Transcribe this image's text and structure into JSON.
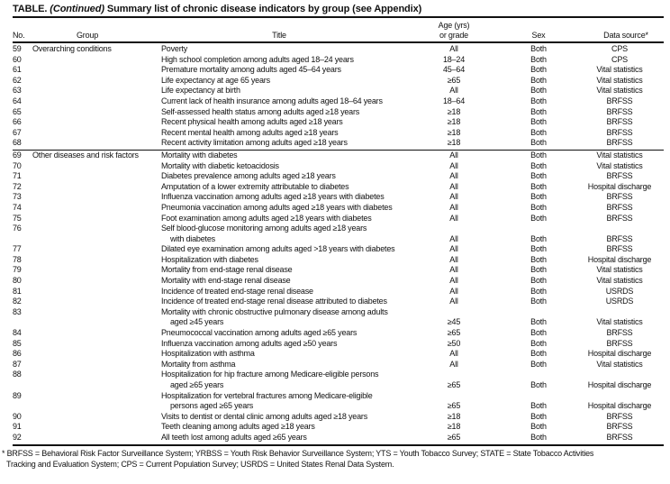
{
  "table": {
    "label": "TABLE.",
    "continued": "(Continued)",
    "caption": "Summary list of chronic disease indicators by group (see Appendix)",
    "headers": {
      "no": "No.",
      "group": "Group",
      "title": "Title",
      "age_line1": "Age (yrs)",
      "age_line2": "or grade",
      "sex": "Sex",
      "source": "Data source*"
    },
    "sections": [
      {
        "group": "Overarching conditions",
        "rows": [
          {
            "no": "59",
            "title": [
              "Poverty"
            ],
            "age": "All",
            "sex": "Both",
            "source": "CPS"
          },
          {
            "no": "60",
            "title": [
              "High school completion among adults aged 18–24 years"
            ],
            "age": "18–24",
            "sex": "Both",
            "source": "CPS"
          },
          {
            "no": "61",
            "title": [
              "Premature mortality among adults aged 45–64 years"
            ],
            "age": "45–64",
            "sex": "Both",
            "source": "Vital statistics"
          },
          {
            "no": "62",
            "title": [
              "Life expectancy at age 65 years"
            ],
            "age": "≥65",
            "sex": "Both",
            "source": "Vital statistics"
          },
          {
            "no": "63",
            "title": [
              "Life expectancy at birth"
            ],
            "age": "All",
            "sex": "Both",
            "source": "Vital statistics"
          },
          {
            "no": "64",
            "title": [
              "Current lack of health insurance among adults aged 18–64 years"
            ],
            "age": "18–64",
            "sex": "Both",
            "source": "BRFSS"
          },
          {
            "no": "65",
            "title": [
              "Self-assessed health status among adults aged ≥18 years"
            ],
            "age": "≥18",
            "sex": "Both",
            "source": "BRFSS"
          },
          {
            "no": "66",
            "title": [
              "Recent physical health among adults aged ≥18 years"
            ],
            "age": "≥18",
            "sex": "Both",
            "source": "BRFSS"
          },
          {
            "no": "67",
            "title": [
              "Recent mental health among adults aged ≥18 years"
            ],
            "age": "≥18",
            "sex": "Both",
            "source": "BRFSS"
          },
          {
            "no": "68",
            "title": [
              "Recent activity limitation among adults aged ≥18 years"
            ],
            "age": "≥18",
            "sex": "Both",
            "source": "BRFSS"
          }
        ]
      },
      {
        "group": "Other diseases and risk factors",
        "rows": [
          {
            "no": "69",
            "title": [
              "Mortality with diabetes"
            ],
            "age": "All",
            "sex": "Both",
            "source": "Vital statistics"
          },
          {
            "no": "70",
            "title": [
              "Mortality with diabetic ketoacidosis"
            ],
            "age": "All",
            "sex": "Both",
            "source": "Vital statistics"
          },
          {
            "no": "71",
            "title": [
              "Diabetes prevalence among adults aged ≥18 years"
            ],
            "age": "All",
            "sex": "Both",
            "source": "BRFSS"
          },
          {
            "no": "72",
            "title": [
              "Amputation of a lower extremity attributable to diabetes"
            ],
            "age": "All",
            "sex": "Both",
            "source": "Hospital discharge"
          },
          {
            "no": "73",
            "title": [
              "Influenza vaccination among adults aged ≥18 years with diabetes"
            ],
            "age": "All",
            "sex": "Both",
            "source": "BRFSS"
          },
          {
            "no": "74",
            "title": [
              "Pneumonia vaccination among adults aged ≥18 years with diabetes"
            ],
            "age": "All",
            "sex": "Both",
            "source": "BRFSS"
          },
          {
            "no": "75",
            "title": [
              "Foot examination among adults aged ≥18 years with diabetes"
            ],
            "age": "All",
            "sex": "Both",
            "source": "BRFSS"
          },
          {
            "no": "76",
            "title": [
              "Self blood-glucose monitoring among adults aged ≥18 years",
              "with diabetes"
            ],
            "age": "All",
            "sex": "Both",
            "source": "BRFSS"
          },
          {
            "no": "77",
            "title": [
              "Dilated eye examination among adults aged >18 years with diabetes"
            ],
            "age": "All",
            "sex": "Both",
            "source": "BRFSS"
          },
          {
            "no": "78",
            "title": [
              "Hospitalization with diabetes"
            ],
            "age": "All",
            "sex": "Both",
            "source": "Hospital discharge"
          },
          {
            "no": "79",
            "title": [
              "Mortality from end-stage renal disease"
            ],
            "age": "All",
            "sex": "Both",
            "source": "Vital statistics"
          },
          {
            "no": "80",
            "title": [
              "Mortality with end-stage renal disease"
            ],
            "age": "All",
            "sex": "Both",
            "source": "Vital statistics"
          },
          {
            "no": "81",
            "title": [
              "Incidence of treated end-stage renal disease"
            ],
            "age": "All",
            "sex": "Both",
            "source": "USRDS"
          },
          {
            "no": "82",
            "title": [
              "Incidence of treated end-stage renal disease attributed to diabetes"
            ],
            "age": "All",
            "sex": "Both",
            "source": "USRDS"
          },
          {
            "no": "83",
            "title": [
              "Mortality with chronic obstructive pulmonary disease among adults",
              "aged ≥45 years"
            ],
            "age": "≥45",
            "sex": "Both",
            "source": "Vital statistics"
          },
          {
            "no": "84",
            "title": [
              "Pneumococcal vaccination among adults aged ≥65 years"
            ],
            "age": "≥65",
            "sex": "Both",
            "source": "BRFSS"
          },
          {
            "no": "85",
            "title": [
              "Influenza vaccination among adults aged ≥50 years"
            ],
            "age": "≥50",
            "sex": "Both",
            "source": "BRFSS"
          },
          {
            "no": "86",
            "title": [
              "Hospitalization with asthma"
            ],
            "age": "All",
            "sex": "Both",
            "source": "Hospital discharge"
          },
          {
            "no": "87",
            "title": [
              "Mortality from asthma"
            ],
            "age": "All",
            "sex": "Both",
            "source": "Vital statistics"
          },
          {
            "no": "88",
            "title": [
              "Hospitalization for hip fracture among Medicare-eligible persons",
              "aged ≥65 years"
            ],
            "age": "≥65",
            "sex": "Both",
            "source": "Hospital discharge"
          },
          {
            "no": "89",
            "title": [
              "Hospitalization for vertebral fractures among Medicare-eligible",
              "persons aged ≥65 years"
            ],
            "age": "≥65",
            "sex": "Both",
            "source": "Hospital discharge"
          },
          {
            "no": "90",
            "title": [
              "Visits to dentist or dental clinic among adults aged ≥18 years"
            ],
            "age": "≥18",
            "sex": "Both",
            "source": "BRFSS"
          },
          {
            "no": "91",
            "title": [
              "Teeth cleaning among adults aged ≥18 years"
            ],
            "age": "≥18",
            "sex": "Both",
            "source": "BRFSS"
          },
          {
            "no": "92",
            "title": [
              "All teeth lost among adults aged ≥65 years"
            ],
            "age": "≥65",
            "sex": "Both",
            "source": "BRFSS"
          }
        ]
      }
    ],
    "footnote": [
      "* BRFSS = Behavioral Risk Factor Surveillance System; YRBSS = Youth Risk Behavior Surveillance System; YTS = Youth Tobacco Survey; STATE = State Tobacco Activities",
      "Tracking and Evaluation System; CPS = Current Population Survey; USRDS = United States Renal Data System."
    ]
  }
}
